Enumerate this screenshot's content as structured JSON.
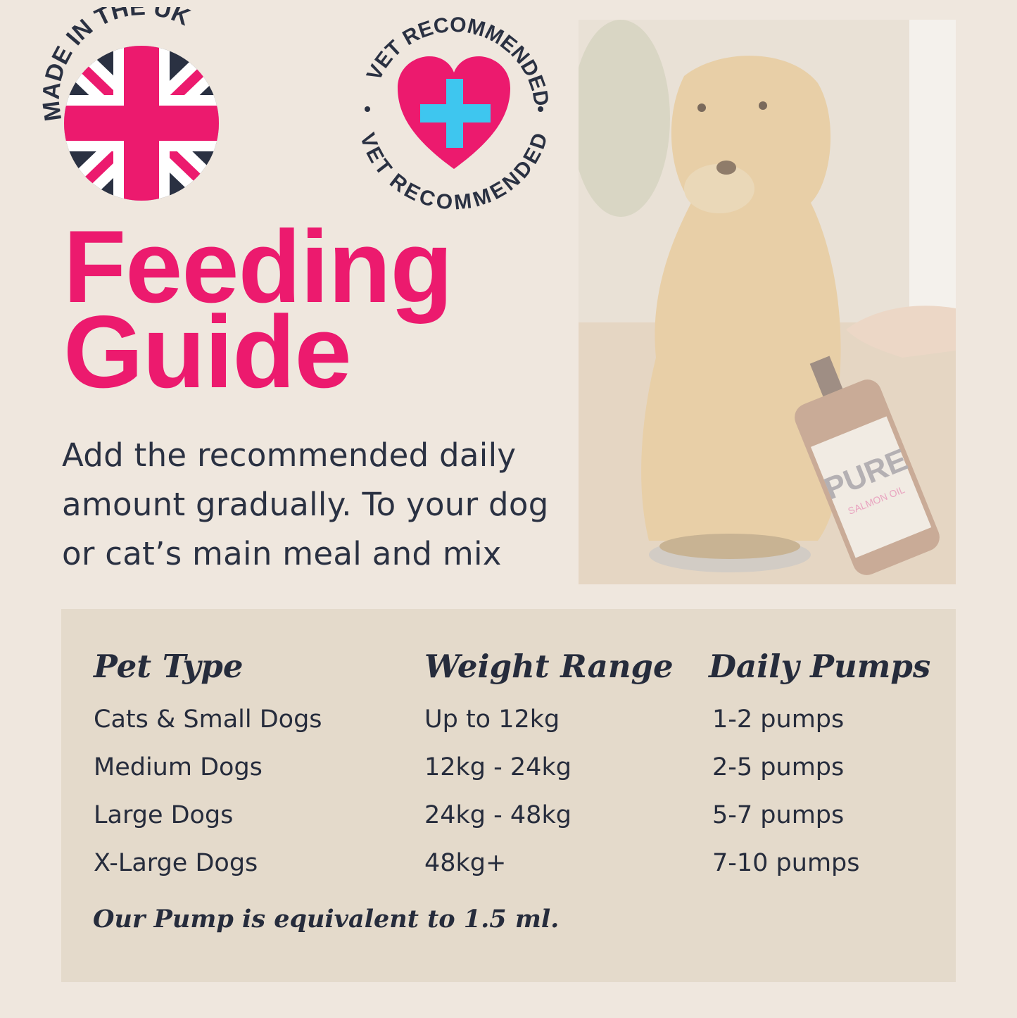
{
  "badges": {
    "uk": {
      "text": "MADE IN THE UK"
    },
    "vet": {
      "text_top": "VET RECOMMENDED",
      "text_bottom": "VET RECOMMENDED"
    }
  },
  "title": {
    "line1": "Feeding",
    "line2": "Guide"
  },
  "intro": "Add the recommended daily amount gradually. To your dog or cat’s main meal and mix",
  "photo": {
    "bottle_brand": "PURE",
    "bottle_subtitle": "SALMON OIL"
  },
  "table": {
    "headers": [
      "Pet Type",
      "Weight Range",
      "Daily Pumps"
    ],
    "rows": [
      [
        "Cats & Small Dogs",
        "Up to 12kg",
        "1-2 pumps"
      ],
      [
        "Medium Dogs",
        "12kg - 24kg",
        "2-5 pumps"
      ],
      [
        "Large Dogs",
        "24kg - 48kg",
        "5-7 pumps"
      ],
      [
        "X-Large Dogs",
        "48kg+",
        "7-10 pumps"
      ]
    ],
    "footnote": "Our Pump is equivalent to 1.5 ml."
  },
  "colors": {
    "accent": "#ec1a6e",
    "text": "#2a3142",
    "background": "#efe7de",
    "panel": "#e4dacb",
    "cross": "#3ec6ef"
  }
}
